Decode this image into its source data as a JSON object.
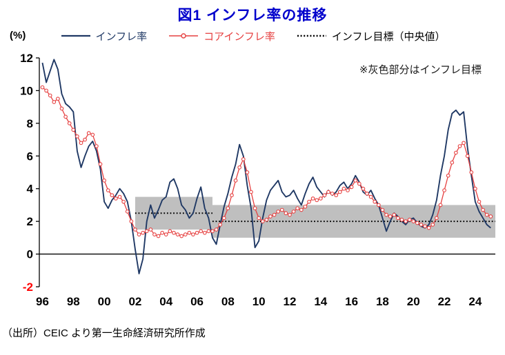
{
  "page": {
    "title": "図1 インフレ率の推移",
    "title_color": "#0000cc",
    "source_note": "（出所）CEIC より第一生命経済研究所作成",
    "background": "#ffffff"
  },
  "legend": [
    {
      "label": "インフレ率",
      "color": "#1f3864",
      "style": "solid"
    },
    {
      "label": "コアインフレ率",
      "color": "#e64040",
      "style": "solid_with_open_circle_markers"
    },
    {
      "label": "インフレ目標（中央値）",
      "color": "#000000",
      "style": "dotted"
    }
  ],
  "chart_data": {
    "type": "line",
    "title": "図1 インフレ率の推移",
    "annotation": "※灰色部分はインフレ目標",
    "y_axis": {
      "unit_label": "(%)",
      "min": -2,
      "max": 12,
      "ticks": [
        12,
        10,
        8,
        6,
        4,
        2,
        0,
        -2
      ],
      "tick_color": "#000000",
      "negative_tick_color": "#ff0000"
    },
    "x_axis": {
      "min": 1995.8,
      "max": 2025.3,
      "ticks": [
        {
          "value": 1996,
          "label": "96"
        },
        {
          "value": 1998,
          "label": "98"
        },
        {
          "value": 2000,
          "label": "00"
        },
        {
          "value": 2002,
          "label": "02"
        },
        {
          "value": 2004,
          "label": "04"
        },
        {
          "value": 2006,
          "label": "06"
        },
        {
          "value": 2008,
          "label": "08"
        },
        {
          "value": 2010,
          "label": "10"
        },
        {
          "value": 2012,
          "label": "12"
        },
        {
          "value": 2014,
          "label": "14"
        },
        {
          "value": 2016,
          "label": "16"
        },
        {
          "value": 2018,
          "label": "18"
        },
        {
          "value": 2020,
          "label": "20"
        },
        {
          "value": 2022,
          "label": "22"
        },
        {
          "value": 2024,
          "label": "24"
        }
      ]
    },
    "x_start": 1996,
    "x_step_years": 0.25,
    "grid": false,
    "series": [
      {
        "name": "インフレ率",
        "color": "#1f3864",
        "style": "solid",
        "values": [
          11.7,
          10.5,
          11.2,
          11.9,
          11.3,
          9.8,
          9.2,
          9.0,
          8.7,
          6.3,
          5.3,
          6.0,
          6.6,
          6.9,
          6.3,
          5.2,
          3.2,
          2.8,
          3.3,
          3.6,
          4.0,
          3.7,
          3.2,
          2.0,
          0.3,
          -1.2,
          -0.3,
          2.0,
          3.0,
          2.2,
          2.7,
          3.3,
          3.5,
          4.4,
          4.6,
          4.0,
          3.0,
          2.7,
          2.2,
          2.5,
          3.4,
          4.1,
          2.8,
          2.2,
          1.0,
          0.6,
          1.8,
          2.9,
          3.7,
          4.7,
          5.5,
          6.7,
          6.0,
          4.2,
          2.8,
          0.4,
          0.8,
          2.2,
          3.3,
          3.9,
          4.2,
          4.5,
          3.8,
          3.5,
          3.6,
          3.9,
          3.4,
          3.0,
          3.7,
          4.3,
          4.7,
          4.1,
          3.8,
          3.5,
          3.9,
          3.6,
          3.8,
          4.2,
          4.4,
          4.0,
          4.3,
          4.8,
          4.4,
          3.8,
          3.6,
          3.9,
          3.4,
          3.0,
          2.2,
          1.4,
          2.0,
          2.5,
          2.3,
          2.0,
          1.8,
          2.1,
          2.2,
          1.9,
          1.7,
          1.6,
          1.8,
          2.4,
          3.3,
          4.8,
          6.0,
          7.6,
          8.6,
          8.8,
          8.5,
          8.7,
          6.5,
          4.8,
          3.2,
          2.6,
          2.2,
          1.8,
          1.6
        ]
      },
      {
        "name": "コアインフレ率",
        "color": "#e64040",
        "style": "solid_with_open_circle_markers",
        "values": [
          10.2,
          10.0,
          9.7,
          9.3,
          9.5,
          8.9,
          8.4,
          8.0,
          7.6,
          7.2,
          6.8,
          7.0,
          7.4,
          7.3,
          6.6,
          5.5,
          4.5,
          3.9,
          3.6,
          3.4,
          3.5,
          3.2,
          2.6,
          2.0,
          1.5,
          1.2,
          1.3,
          1.4,
          1.5,
          1.2,
          1.1,
          1.3,
          1.2,
          1.4,
          1.3,
          1.2,
          1.1,
          1.2,
          1.3,
          1.2,
          1.3,
          1.4,
          1.3,
          1.4,
          1.4,
          1.5,
          1.8,
          2.2,
          2.8,
          3.6,
          4.5,
          5.3,
          5.8,
          5.0,
          3.8,
          2.8,
          2.2,
          2.0,
          2.1,
          2.3,
          2.4,
          2.6,
          2.7,
          2.5,
          2.4,
          2.6,
          2.8,
          2.7,
          2.9,
          3.2,
          3.4,
          3.3,
          3.4,
          3.6,
          3.8,
          3.7,
          3.6,
          3.8,
          4.0,
          3.9,
          4.1,
          4.5,
          4.3,
          4.0,
          3.7,
          3.5,
          3.2,
          3.0,
          2.7,
          2.4,
          2.3,
          2.4,
          2.2,
          2.1,
          2.0,
          2.1,
          2.0,
          1.9,
          1.8,
          1.7,
          1.6,
          1.8,
          2.2,
          3.0,
          3.9,
          4.8,
          5.6,
          6.2,
          6.6,
          6.8,
          6.0,
          5.0,
          4.0,
          3.2,
          2.7,
          2.4,
          2.3
        ]
      }
    ],
    "target_line": {
      "name": "インフレ目標（中央値）",
      "color": "#000000",
      "style": "dotted",
      "segments": [
        {
          "x_from": 2002,
          "x_to": 2007,
          "y": 2.5
        },
        {
          "x_from": 2007,
          "x_to": 2025.3,
          "y": 2.0
        }
      ]
    },
    "target_band": {
      "name": "インフレ目標レンジ",
      "color": "#bfbfbf",
      "segments": [
        {
          "x_from": 2002,
          "x_to": 2007,
          "low": 1.5,
          "high": 3.5
        },
        {
          "x_from": 2007,
          "x_to": 2025.3,
          "low": 1.0,
          "high": 3.0
        }
      ]
    }
  }
}
